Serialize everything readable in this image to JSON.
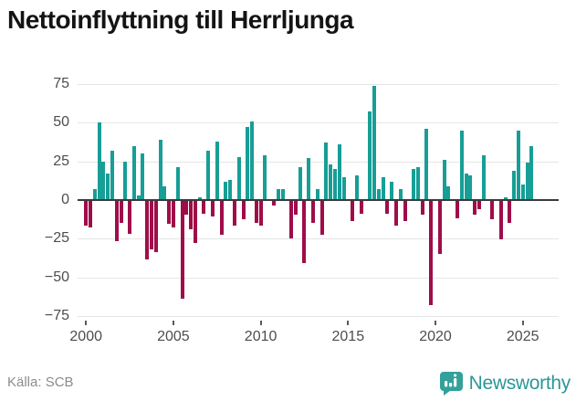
{
  "header": {
    "title": "Nettoinflyttning till Herrljunga"
  },
  "source": {
    "label": "Källa: SCB"
  },
  "brand": {
    "name": "Newsworthy",
    "icon": "newsworthy-badge-icon",
    "wordmark_color": "#2D9696",
    "badge_color": "#33A09A"
  },
  "colors": {
    "positive": "#179E96",
    "negative": "#9F0D49",
    "grid": "#E6E6E6",
    "zero_line": "#3A3A3A",
    "axis_text": "#4D4D4D",
    "source_text": "#8C8C8C",
    "background": "#FFFFFF"
  },
  "chart_data": {
    "type": "bar",
    "title": "Nettoinflyttning till Herrljunga",
    "frequency": "quarterly",
    "x_start": {
      "year": 2000,
      "quarter": 1
    },
    "x_end": {
      "year": 2025,
      "quarter": 3
    },
    "values": [
      -16,
      -17,
      7,
      50,
      25,
      17,
      32,
      -26,
      -14,
      25,
      -21,
      35,
      3,
      30,
      -38,
      -31,
      -33,
      39,
      9,
      -15,
      -17,
      21,
      -63,
      -9,
      -18,
      -27,
      2,
      -8,
      32,
      -10,
      38,
      -22,
      12,
      13,
      -16,
      28,
      -12,
      47,
      51,
      -14,
      -16,
      29,
      0,
      -3,
      7,
      7,
      0,
      -24,
      -9,
      21,
      -40,
      27,
      -14,
      7,
      -22,
      37,
      23,
      20,
      36,
      15,
      0,
      -13,
      16,
      -8,
      0,
      57,
      74,
      7,
      15,
      -8,
      12,
      -16,
      7,
      -13,
      0,
      20,
      21,
      -9,
      46,
      -67,
      0,
      -34,
      26,
      9,
      0,
      -11,
      45,
      17,
      16,
      -9,
      -5,
      29,
      0,
      -12,
      0,
      -25,
      2,
      -14,
      19,
      45,
      10,
      24,
      35
    ],
    "y_ticks": [
      75,
      50,
      25,
      0,
      -25,
      -50,
      -75
    ],
    "ylim": [
      -75,
      75
    ],
    "x_tick_years": [
      2000,
      2005,
      2010,
      2015,
      2020,
      2025
    ],
    "grid": true,
    "legend": "none",
    "positive_color": "#179E96",
    "negative_color": "#9F0D49"
  }
}
